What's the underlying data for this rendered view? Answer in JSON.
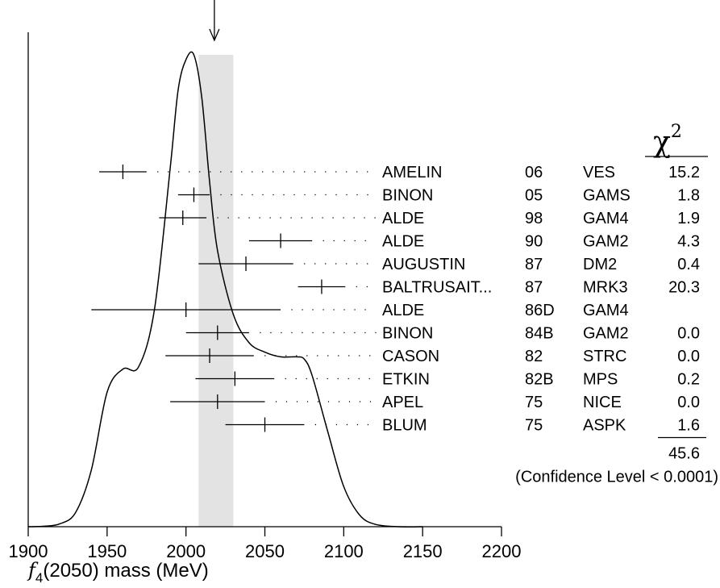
{
  "chart_data": {
    "type": "ideogram",
    "title": "",
    "xlabel": {
      "particle": "f",
      "subscript": "4",
      "rest": "(2050) mass (MeV)"
    },
    "xlim": [
      1900,
      2200
    ],
    "xticks": [
      1900,
      1950,
      2000,
      2050,
      2100,
      2150,
      2200
    ],
    "average_band": [
      2008,
      2030
    ],
    "average_marker": 2018,
    "chi2_header": {
      "symbol": "χ",
      "superscript": "2"
    },
    "measurements": [
      {
        "name": "AMELIN",
        "year": "06",
        "experiment": "VES",
        "value": 1960,
        "error": 15,
        "chi2": "15.2"
      },
      {
        "name": "BINON",
        "year": "05",
        "experiment": "GAMS",
        "value": 2005,
        "error": 10,
        "chi2": "1.8"
      },
      {
        "name": "ALDE",
        "year": "98",
        "experiment": "GAM4",
        "value": 1998,
        "error": 15,
        "chi2": "1.9"
      },
      {
        "name": "ALDE",
        "year": "90",
        "experiment": "GAM2",
        "value": 2060,
        "error": 20,
        "chi2": "4.3"
      },
      {
        "name": "AUGUSTIN",
        "year": "87",
        "experiment": "DM2",
        "value": 2038,
        "error": 30,
        "chi2": "0.4"
      },
      {
        "name": "BALTRUSAIT...",
        "year": "87",
        "experiment": "MRK3",
        "value": 2086,
        "error": 15,
        "chi2": "20.3"
      },
      {
        "name": "ALDE",
        "year": "86D",
        "experiment": "GAM4",
        "value": 2000,
        "error": 60,
        "chi2": ""
      },
      {
        "name": "BINON",
        "year": "84B",
        "experiment": "GAM2",
        "value": 2020,
        "error": 20,
        "chi2": "0.0"
      },
      {
        "name": "CASON",
        "year": "82",
        "experiment": "STRC",
        "value": 2015,
        "error": 28,
        "chi2": "0.0"
      },
      {
        "name": "ETKIN",
        "year": "82B",
        "experiment": "MPS",
        "value": 2031,
        "error": 25,
        "chi2": "0.2"
      },
      {
        "name": "APEL",
        "year": "75",
        "experiment": "NICE",
        "value": 2020,
        "error": 30,
        "chi2": "0.0"
      },
      {
        "name": "BLUM",
        "year": "75",
        "experiment": "ASPK",
        "value": 2050,
        "error": 25,
        "chi2": "1.6"
      }
    ],
    "chi2_total": "45.6",
    "confidence_level": "(Confidence Level < 0.0001)",
    "ideogram_curve": [
      [
        1900,
        0.0
      ],
      [
        1910,
        0.001
      ],
      [
        1920,
        0.006
      ],
      [
        1930,
        0.03
      ],
      [
        1940,
        0.12
      ],
      [
        1950,
        0.285
      ],
      [
        1960,
        0.334
      ],
      [
        1970,
        0.339
      ],
      [
        1980,
        0.46
      ],
      [
        1990,
        0.76
      ],
      [
        1995,
        0.925
      ],
      [
        2000,
        0.99
      ],
      [
        2005,
        1.0
      ],
      [
        2010,
        0.91
      ],
      [
        2015,
        0.73
      ],
      [
        2020,
        0.585
      ],
      [
        2030,
        0.45
      ],
      [
        2040,
        0.39
      ],
      [
        2050,
        0.37
      ],
      [
        2060,
        0.36
      ],
      [
        2070,
        0.36
      ],
      [
        2075,
        0.355
      ],
      [
        2080,
        0.32
      ],
      [
        2090,
        0.2
      ],
      [
        2100,
        0.085
      ],
      [
        2110,
        0.025
      ],
      [
        2120,
        0.005
      ],
      [
        2135,
        0.0
      ],
      [
        2150,
        0.0
      ]
    ]
  }
}
